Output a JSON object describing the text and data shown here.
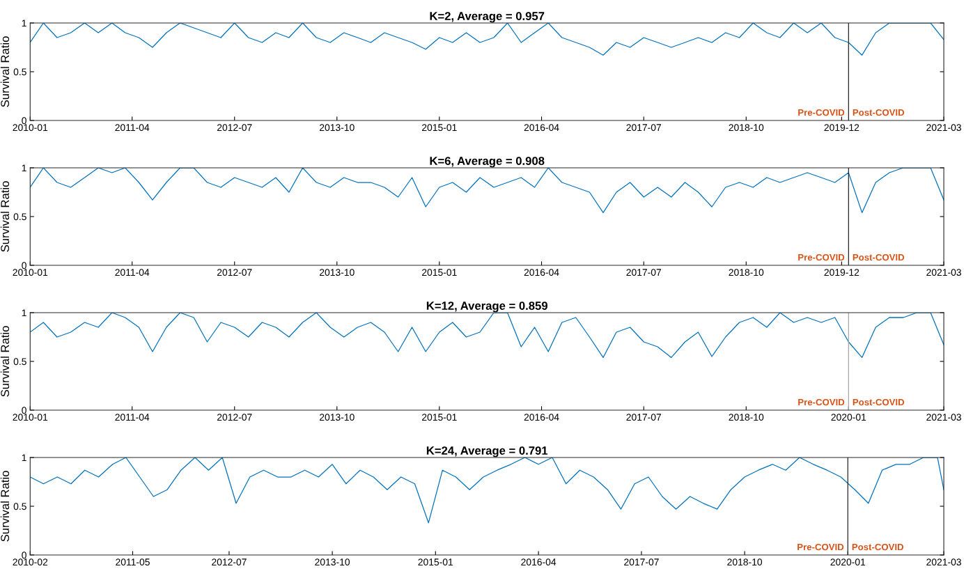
{
  "chart_data": [
    {
      "type": "line",
      "title": "K=2, Average = 0.957",
      "ylabel": "Survival Ratio",
      "x": [
        "2010-01",
        "2010-03",
        "2010-05",
        "2010-07",
        "2010-09",
        "2010-11",
        "2011-01",
        "2011-03",
        "2011-05",
        "2011-07",
        "2011-09",
        "2011-11",
        "2012-01",
        "2012-03",
        "2012-05",
        "2012-07",
        "2012-09",
        "2012-11",
        "2013-01",
        "2013-03",
        "2013-05",
        "2013-07",
        "2013-09",
        "2013-11",
        "2014-01",
        "2014-03",
        "2014-05",
        "2014-07",
        "2014-09",
        "2014-11",
        "2015-01",
        "2015-03",
        "2015-05",
        "2015-07",
        "2015-09",
        "2015-11",
        "2016-01",
        "2016-03",
        "2016-05",
        "2016-07",
        "2016-09",
        "2016-11",
        "2017-01",
        "2017-03",
        "2017-05",
        "2017-07",
        "2017-09",
        "2017-11",
        "2018-01",
        "2018-03",
        "2018-05",
        "2018-07",
        "2018-09",
        "2018-11",
        "2019-01",
        "2019-03",
        "2019-05",
        "2019-07",
        "2019-09",
        "2019-11",
        "2020-01",
        "2020-03",
        "2020-05",
        "2020-07",
        "2020-09",
        "2020-11",
        "2021-01",
        "2021-03"
      ],
      "series": [
        {
          "color": "#0072bd",
          "values": [
            0.8,
            1,
            0.85,
            0.9,
            1,
            0.9,
            1,
            0.9,
            0.85,
            0.75,
            0.9,
            1,
            0.95,
            0.9,
            0.85,
            1,
            0.85,
            0.8,
            0.9,
            0.85,
            1,
            0.85,
            0.8,
            0.9,
            0.85,
            0.8,
            0.9,
            0.85,
            0.8,
            0.73,
            0.85,
            0.8,
            0.9,
            0.8,
            0.85,
            1,
            0.8,
            0.9,
            1,
            0.85,
            0.8,
            0.75,
            0.67,
            0.8,
            0.75,
            0.85,
            0.8,
            0.75,
            0.8,
            0.85,
            0.8,
            0.9,
            0.85,
            1,
            0.9,
            0.85,
            1,
            0.9,
            1,
            0.85,
            0.8,
            0.67,
            0.9,
            1,
            1,
            1,
            1,
            0.83
          ]
        }
      ],
      "xlim": [
        "2010-01",
        "2021-03"
      ],
      "ylim": [
        0,
        1
      ],
      "xticks": [
        {
          "value": "2010-01",
          "label": "2010-01"
        },
        {
          "value": "2011-04",
          "label": "2011-04"
        },
        {
          "value": "2012-07",
          "label": "2012-07"
        },
        {
          "value": "2013-10",
          "label": "2013-10"
        },
        {
          "value": "2015-01",
          "label": "2015-01"
        },
        {
          "value": "2016-04",
          "label": "2016-04"
        },
        {
          "value": "2017-07",
          "label": "2017-07"
        },
        {
          "value": "2018-10",
          "label": "2018-10"
        },
        {
          "value": "2019-12",
          "label": "2019-12"
        },
        {
          "value": "2021-03",
          "label": "2021-03"
        }
      ],
      "yticks": [
        0,
        0.5,
        1
      ],
      "ref_lines": [
        {
          "axis": "x",
          "value": "2020-01",
          "color": "#262626"
        }
      ],
      "annotations": [
        "Pre-COVID",
        "Post-COVID"
      ]
    },
    {
      "type": "line",
      "title": "K=6, Average = 0.908",
      "ylabel": "Survival Ratio",
      "x": [
        "2010-01",
        "2010-03",
        "2010-05",
        "2010-07",
        "2010-09",
        "2010-11",
        "2011-01",
        "2011-03",
        "2011-05",
        "2011-07",
        "2011-09",
        "2011-11",
        "2012-01",
        "2012-03",
        "2012-05",
        "2012-07",
        "2012-09",
        "2012-11",
        "2013-01",
        "2013-03",
        "2013-05",
        "2013-07",
        "2013-09",
        "2013-11",
        "2014-01",
        "2014-03",
        "2014-05",
        "2014-07",
        "2014-09",
        "2014-11",
        "2015-01",
        "2015-03",
        "2015-05",
        "2015-07",
        "2015-09",
        "2015-11",
        "2016-01",
        "2016-03",
        "2016-05",
        "2016-07",
        "2016-09",
        "2016-11",
        "2017-01",
        "2017-03",
        "2017-05",
        "2017-07",
        "2017-09",
        "2017-11",
        "2018-01",
        "2018-03",
        "2018-05",
        "2018-07",
        "2018-09",
        "2018-11",
        "2019-01",
        "2019-03",
        "2019-05",
        "2019-07",
        "2019-09",
        "2019-11",
        "2020-01",
        "2020-03",
        "2020-05",
        "2020-07",
        "2020-09",
        "2020-11",
        "2021-01",
        "2021-03"
      ],
      "series": [
        {
          "color": "#0072bd",
          "values": [
            0.8,
            1,
            0.85,
            0.8,
            0.9,
            1,
            0.95,
            1,
            0.85,
            0.67,
            0.85,
            1,
            1,
            0.85,
            0.8,
            0.9,
            0.85,
            0.8,
            0.9,
            0.75,
            1,
            0.85,
            0.8,
            0.9,
            0.85,
            0.85,
            0.8,
            0.7,
            0.9,
            0.6,
            0.8,
            0.85,
            0.75,
            0.9,
            0.8,
            0.85,
            0.9,
            0.8,
            1,
            0.85,
            0.8,
            0.75,
            0.54,
            0.75,
            0.85,
            0.7,
            0.8,
            0.7,
            0.85,
            0.75,
            0.6,
            0.8,
            0.85,
            0.8,
            0.9,
            0.85,
            0.9,
            0.95,
            0.9,
            0.85,
            0.95,
            0.54,
            0.85,
            0.95,
            1,
            1,
            1,
            0.67
          ]
        }
      ],
      "xlim": [
        "2010-01",
        "2021-03"
      ],
      "ylim": [
        0,
        1
      ],
      "xticks": [
        {
          "value": "2010-01",
          "label": "2010-01"
        },
        {
          "value": "2011-04",
          "label": "2011-04"
        },
        {
          "value": "2012-07",
          "label": "2012-07"
        },
        {
          "value": "2013-10",
          "label": "2013-10"
        },
        {
          "value": "2015-01",
          "label": "2015-01"
        },
        {
          "value": "2016-04",
          "label": "2016-04"
        },
        {
          "value": "2017-07",
          "label": "2017-07"
        },
        {
          "value": "2018-10",
          "label": "2018-10"
        },
        {
          "value": "2019-12",
          "label": "2019-12"
        },
        {
          "value": "2021-03",
          "label": "2021-03"
        }
      ],
      "yticks": [
        0,
        0.5,
        1
      ],
      "ref_lines": [
        {
          "axis": "x",
          "value": "2020-01",
          "color": "#262626"
        }
      ],
      "annotations": [
        "Pre-COVID",
        "Post-COVID"
      ]
    },
    {
      "type": "line",
      "title": "K=12, Average = 0.859",
      "ylabel": "Survival Ratio",
      "x": [
        "2010-01",
        "2010-03",
        "2010-05",
        "2010-07",
        "2010-09",
        "2010-11",
        "2011-01",
        "2011-03",
        "2011-05",
        "2011-07",
        "2011-09",
        "2011-11",
        "2012-01",
        "2012-03",
        "2012-05",
        "2012-07",
        "2012-09",
        "2012-11",
        "2013-01",
        "2013-03",
        "2013-05",
        "2013-07",
        "2013-09",
        "2013-11",
        "2014-01",
        "2014-03",
        "2014-05",
        "2014-07",
        "2014-09",
        "2014-11",
        "2015-01",
        "2015-03",
        "2015-05",
        "2015-07",
        "2015-09",
        "2015-11",
        "2016-01",
        "2016-03",
        "2016-05",
        "2016-07",
        "2016-09",
        "2016-11",
        "2017-01",
        "2017-03",
        "2017-05",
        "2017-07",
        "2017-09",
        "2017-11",
        "2018-01",
        "2018-03",
        "2018-05",
        "2018-07",
        "2018-09",
        "2018-11",
        "2019-01",
        "2019-03",
        "2019-05",
        "2019-07",
        "2019-09",
        "2019-11",
        "2020-01",
        "2020-03",
        "2020-05",
        "2020-07",
        "2020-09",
        "2020-11",
        "2021-01",
        "2021-03"
      ],
      "series": [
        {
          "color": "#0072bd",
          "values": [
            0.8,
            0.9,
            0.75,
            0.8,
            0.9,
            0.85,
            1,
            0.95,
            0.85,
            0.6,
            0.85,
            1,
            0.95,
            0.7,
            0.9,
            0.85,
            0.75,
            0.9,
            0.85,
            0.75,
            0.9,
            1,
            0.85,
            0.75,
            0.85,
            0.9,
            0.8,
            0.6,
            0.85,
            0.6,
            0.8,
            0.9,
            0.75,
            0.8,
            1,
            1,
            0.65,
            0.85,
            0.6,
            0.9,
            0.95,
            0.75,
            0.54,
            0.8,
            0.85,
            0.7,
            0.65,
            0.54,
            0.7,
            0.8,
            0.55,
            0.75,
            0.9,
            0.95,
            0.85,
            1,
            0.9,
            0.95,
            0.9,
            0.95,
            0.7,
            0.54,
            0.85,
            0.95,
            0.95,
            1,
            1,
            0.67
          ]
        }
      ],
      "xlim": [
        "2010-01",
        "2021-03"
      ],
      "ylim": [
        0,
        1
      ],
      "xticks": [
        {
          "value": "2010-01",
          "label": "2010-01"
        },
        {
          "value": "2011-04",
          "label": "2011-04"
        },
        {
          "value": "2012-07",
          "label": "2012-07"
        },
        {
          "value": "2013-10",
          "label": "2013-10"
        },
        {
          "value": "2015-01",
          "label": "2015-01"
        },
        {
          "value": "2016-04",
          "label": "2016-04"
        },
        {
          "value": "2017-07",
          "label": "2017-07"
        },
        {
          "value": "2018-10",
          "label": "2018-10"
        },
        {
          "value": "2020-01",
          "label": "2020-01"
        },
        {
          "value": "2021-03",
          "label": "2021-03"
        }
      ],
      "yticks": [
        0,
        0.5,
        1
      ],
      "ref_lines": [
        {
          "axis": "x",
          "value": "2020-01",
          "color": "#a6a6a6"
        }
      ],
      "annotations": [
        "Pre-COVID",
        "Post-COVID"
      ]
    },
    {
      "type": "line",
      "title": "K=24, Average = 0.791",
      "ylabel": "Survival Ratio",
      "x": [
        "2010-02",
        "2010-04",
        "2010-06",
        "2010-08",
        "2010-10",
        "2010-12",
        "2011-02",
        "2011-04",
        "2011-06",
        "2011-08",
        "2011-10",
        "2011-12",
        "2012-02",
        "2012-04",
        "2012-06",
        "2012-08",
        "2012-10",
        "2012-12",
        "2013-02",
        "2013-04",
        "2013-06",
        "2013-08",
        "2013-10",
        "2013-12",
        "2014-02",
        "2014-04",
        "2014-06",
        "2014-08",
        "2014-10",
        "2014-12",
        "2015-02",
        "2015-04",
        "2015-06",
        "2015-08",
        "2015-10",
        "2015-12",
        "2016-02",
        "2016-04",
        "2016-06",
        "2016-08",
        "2016-10",
        "2016-12",
        "2017-02",
        "2017-04",
        "2017-06",
        "2017-08",
        "2017-10",
        "2017-12",
        "2018-02",
        "2018-04",
        "2018-06",
        "2018-08",
        "2018-10",
        "2018-12",
        "2019-02",
        "2019-04",
        "2019-06",
        "2019-08",
        "2019-10",
        "2019-12",
        "2020-02",
        "2020-04",
        "2020-06",
        "2020-08",
        "2020-10",
        "2020-12",
        "2021-02",
        "2021-03"
      ],
      "series": [
        {
          "color": "#0072bd",
          "values": [
            0.8,
            0.73,
            0.8,
            0.73,
            0.87,
            0.8,
            0.93,
            1,
            0.8,
            0.6,
            0.67,
            0.87,
            1,
            0.87,
            1,
            0.53,
            0.8,
            0.87,
            0.8,
            0.8,
            0.87,
            0.8,
            0.93,
            0.73,
            0.87,
            0.8,
            0.67,
            0.8,
            0.73,
            0.33,
            0.87,
            0.8,
            0.67,
            0.8,
            0.87,
            0.93,
            1,
            0.93,
            1,
            0.73,
            0.87,
            0.8,
            0.67,
            0.47,
            0.73,
            0.8,
            0.6,
            0.47,
            0.6,
            0.53,
            0.47,
            0.67,
            0.8,
            0.87,
            0.93,
            0.87,
            1,
            0.93,
            0.87,
            0.8,
            0.67,
            0.53,
            0.87,
            0.93,
            0.93,
            1,
            1,
            0.67
          ]
        }
      ],
      "xlim": [
        "2010-02",
        "2021-03"
      ],
      "ylim": [
        0,
        1
      ],
      "xticks": [
        {
          "value": "2010-02",
          "label": "2010-02"
        },
        {
          "value": "2011-05",
          "label": "2011-05"
        },
        {
          "value": "2012-07",
          "label": "2012-07"
        },
        {
          "value": "2013-10",
          "label": "2013-10"
        },
        {
          "value": "2015-01",
          "label": "2015-01"
        },
        {
          "value": "2016-04",
          "label": "2016-04"
        },
        {
          "value": "2017-07",
          "label": "2017-07"
        },
        {
          "value": "2018-10",
          "label": "2018-10"
        },
        {
          "value": "2020-01",
          "label": "2020-01"
        },
        {
          "value": "2021-03",
          "label": "2021-03"
        }
      ],
      "yticks": [
        0,
        0.5,
        1
      ],
      "ref_lines": [
        {
          "axis": "x",
          "value": "2020-01",
          "color": "#262626"
        }
      ],
      "annotations": [
        "Pre-COVID",
        "Post-COVID"
      ]
    }
  ]
}
